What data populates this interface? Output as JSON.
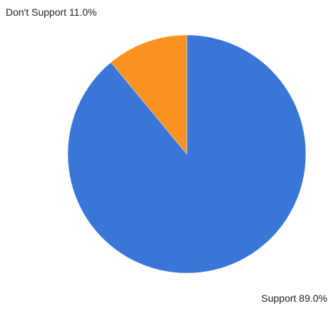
{
  "chart_data": {
    "type": "pie",
    "title": "",
    "slices": [
      {
        "name": "Support",
        "value": 89.0,
        "label": "Support 89.0%",
        "color": "#3a76d8"
      },
      {
        "name": "Don't Support",
        "value": 11.0,
        "label": "Don't Support 11.0%",
        "color": "#f7931e"
      }
    ],
    "start_angle": "top",
    "direction": "clockwise",
    "legend": "none"
  }
}
